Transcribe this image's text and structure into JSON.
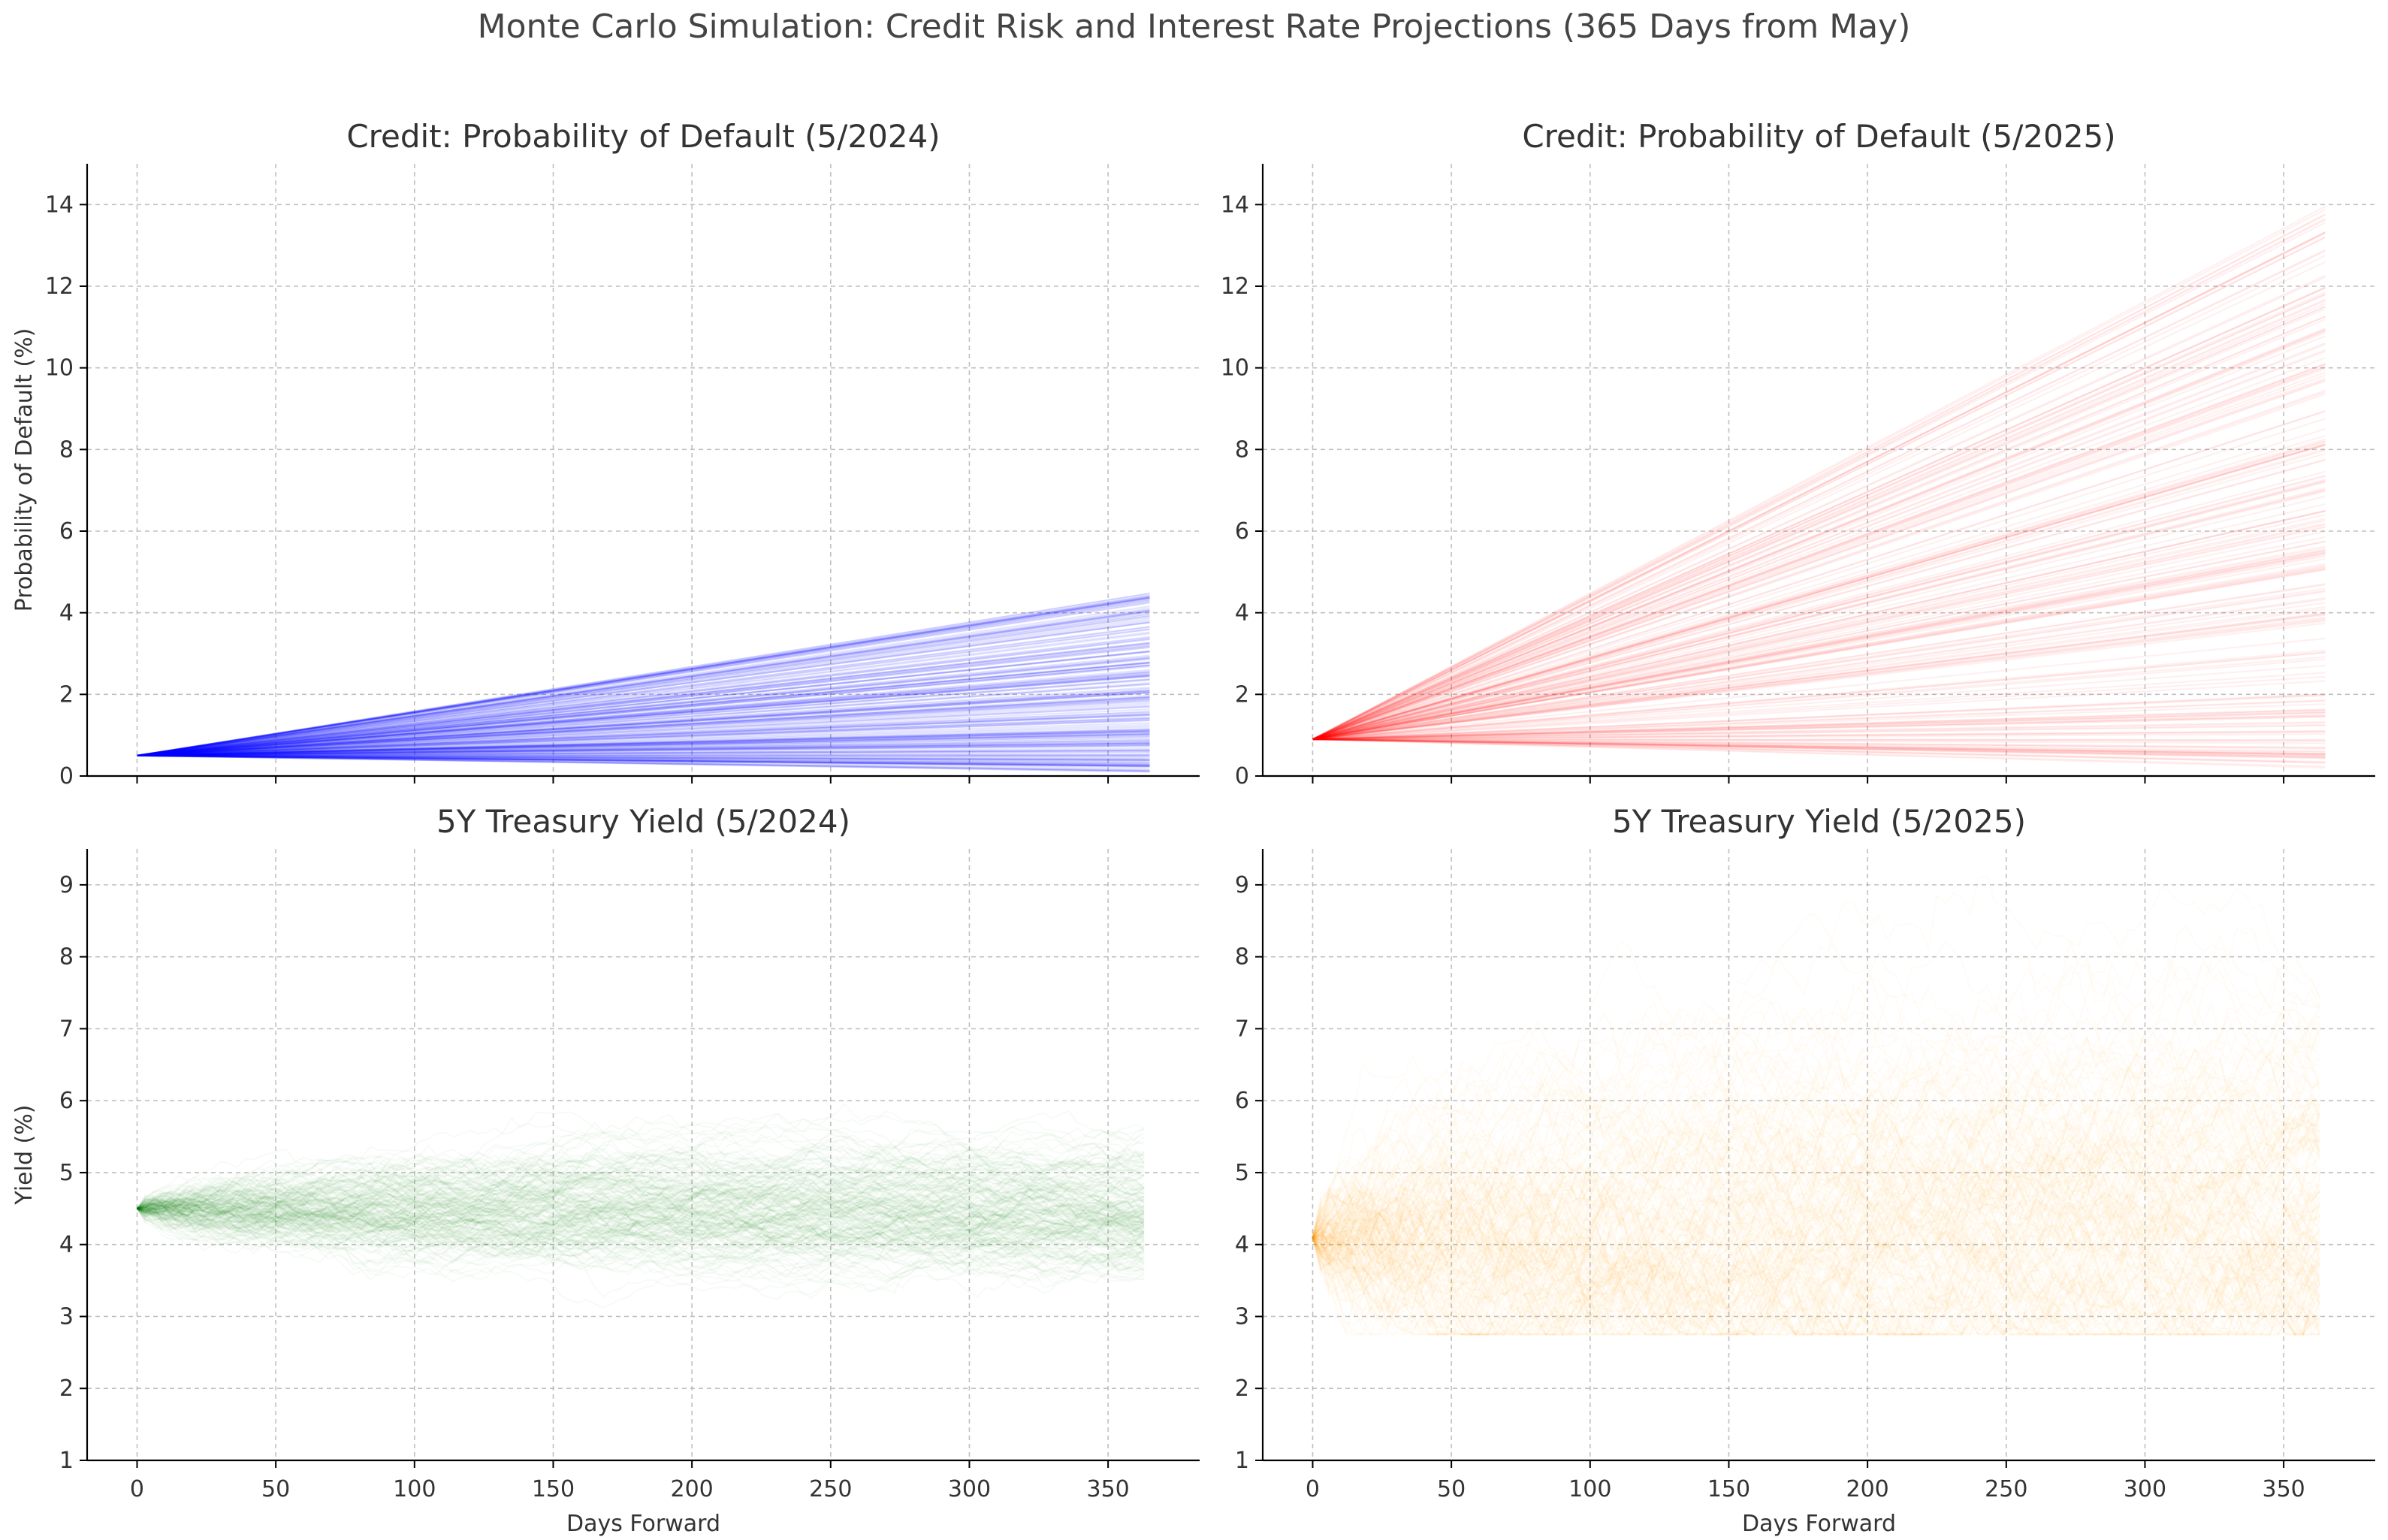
{
  "figure": {
    "title": "Monte Carlo Simulation: Credit Risk and Interest Rate Projections (365 Days from May)"
  },
  "chart_data": [
    {
      "type": "line",
      "title": "Credit: Probability of Default (5/2024)",
      "xlabel": "",
      "ylabel": "Probability of Default (%)",
      "xlim": [
        -18,
        383
      ],
      "ylim": [
        0,
        15
      ],
      "xticks": [
        0,
        50,
        100,
        150,
        200,
        250,
        300,
        350
      ],
      "xtick_labels": [
        "0",
        "50",
        "100",
        "150",
        "200",
        "250",
        "300",
        "350"
      ],
      "yticks": [
        0,
        2,
        4,
        6,
        8,
        10,
        12,
        14
      ],
      "ytick_labels": [
        "0",
        "2",
        "4",
        "6",
        "8",
        "10",
        "12",
        "14"
      ],
      "show_xtick_labels": false,
      "grid": true,
      "color": "#0000ff",
      "line_opacity": 0.1,
      "num_paths": 200,
      "path_kind": "linear",
      "start_value": 0.5,
      "end_range": [
        0.1,
        4.5
      ],
      "horizon_days": 365
    },
    {
      "type": "line",
      "title": "Credit: Probability of Default (5/2025)",
      "xlabel": "",
      "ylabel": "",
      "xlim": [
        -18,
        383
      ],
      "ylim": [
        0,
        15
      ],
      "xticks": [
        0,
        50,
        100,
        150,
        200,
        250,
        300,
        350
      ],
      "xtick_labels": [
        "0",
        "50",
        "100",
        "150",
        "200",
        "250",
        "300",
        "350"
      ],
      "yticks": [
        0,
        2,
        4,
        6,
        8,
        10,
        12,
        14
      ],
      "ytick_labels": [
        "0",
        "2",
        "4",
        "6",
        "8",
        "10",
        "12",
        "14"
      ],
      "show_xtick_labels": false,
      "grid": true,
      "color": "#ff0000",
      "line_opacity": 0.06,
      "num_paths": 200,
      "path_kind": "linear",
      "start_value": 0.9,
      "end_range": [
        0.2,
        14.0
      ],
      "horizon_days": 365
    },
    {
      "type": "line",
      "title": "5Y Treasury Yield (5/2024)",
      "xlabel": "Days Forward",
      "ylabel": "Yield (%)",
      "xlim": [
        -18,
        383
      ],
      "ylim": [
        1,
        9.5
      ],
      "xticks": [
        0,
        50,
        100,
        150,
        200,
        250,
        300,
        350
      ],
      "xtick_labels": [
        "0",
        "50",
        "100",
        "150",
        "200",
        "250",
        "300",
        "350"
      ],
      "yticks": [
        1,
        2,
        3,
        4,
        5,
        6,
        7,
        8,
        9
      ],
      "ytick_labels": [
        "1",
        "2",
        "3",
        "4",
        "5",
        "6",
        "7",
        "8",
        "9"
      ],
      "show_xtick_labels": true,
      "grid": true,
      "color": "#008000",
      "line_opacity": 0.03,
      "num_paths": 200,
      "path_kind": "random_walk",
      "start_value": 4.5,
      "end_range": [
        3.6,
        5.6
      ],
      "daily_sigma": 0.04,
      "floor": null,
      "horizon_days": 365
    },
    {
      "type": "line",
      "title": "5Y Treasury Yield (5/2025)",
      "xlabel": "Days Forward",
      "ylabel": "",
      "xlim": [
        -18,
        383
      ],
      "ylim": [
        1,
        9.5
      ],
      "xticks": [
        0,
        50,
        100,
        150,
        200,
        250,
        300,
        350
      ],
      "xtick_labels": [
        "0",
        "50",
        "100",
        "150",
        "200",
        "250",
        "300",
        "350"
      ],
      "yticks": [
        1,
        2,
        3,
        4,
        5,
        6,
        7,
        8,
        9
      ],
      "ytick_labels": [
        "1",
        "2",
        "3",
        "4",
        "5",
        "6",
        "7",
        "8",
        "9"
      ],
      "show_xtick_labels": true,
      "grid": true,
      "color": "#ffa500",
      "line_opacity": 0.03,
      "num_paths": 200,
      "path_kind": "random_walk",
      "start_value": 4.1,
      "end_range": [
        2.8,
        8.5
      ],
      "daily_sigma": 0.13,
      "floor": 2.75,
      "horizon_days": 365
    }
  ]
}
